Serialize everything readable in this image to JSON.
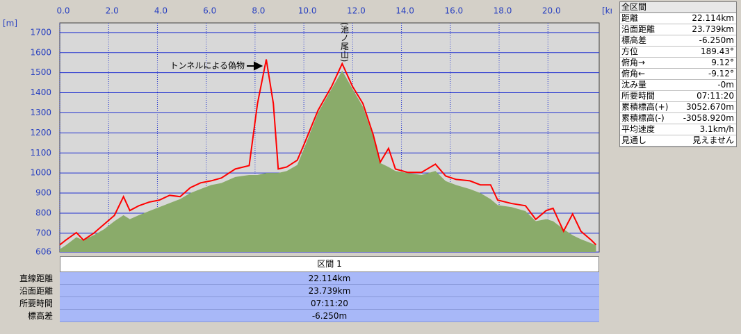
{
  "chart_data": {
    "type": "line",
    "x_unit": "[km]",
    "y_unit": "[m]",
    "x": [
      0,
      0.25,
      0.68,
      0.97,
      1.39,
      1.82,
      2.24,
      2.61,
      2.87,
      3.24,
      3.66,
      4.08,
      4.5,
      4.93,
      5.35,
      5.77,
      6.2,
      6.62,
      7.19,
      7.76,
      8.1,
      8.46,
      8.75,
      8.95,
      9.3,
      9.73,
      10.0,
      10.58,
      11.14,
      11.57,
      11.99,
      12.42,
      12.84,
      13.13,
      13.47,
      13.75,
      14.26,
      14.82,
      15.39,
      15.81,
      16.24,
      16.8,
      17.23,
      17.65,
      17.94,
      18.51,
      19.08,
      19.5,
      19.93,
      20.21,
      20.64,
      21.01,
      21.35,
      21.77,
      21.97
    ],
    "series": [
      {
        "color": "#ff0000",
        "fill": false,
        "values": [
          642,
          666,
          703,
          666,
          700,
          745,
          789,
          882,
          813,
          837,
          855,
          865,
          889,
          882,
          927,
          951,
          961,
          975,
          1020,
          1037,
          1346,
          1566,
          1346,
          1020,
          1030,
          1064,
          1140,
          1312,
          1432,
          1545,
          1432,
          1346,
          1191,
          1054,
          1123,
          1020,
          1003,
          1003,
          1044,
          985,
          968,
          961,
          941,
          941,
          865,
          848,
          837,
          769,
          813,
          824,
          710,
          796,
          710,
          666,
          642
        ]
      },
      {
        "color": "#8aab6a",
        "fill": true,
        "values": [
          620,
          640,
          680,
          665,
          690,
          720,
          760,
          790,
          770,
          790,
          810,
          830,
          850,
          870,
          900,
          920,
          940,
          950,
          980,
          990,
          990,
          1000,
          1000,
          1000,
          1010,
          1040,
          1120,
          1300,
          1420,
          1510,
          1420,
          1330,
          1180,
          1050,
          1030,
          1010,
          1000,
          990,
          1010,
          960,
          940,
          920,
          900,
          870,
          840,
          830,
          810,
          760,
          770,
          760,
          720,
          690,
          670,
          650,
          640
        ]
      }
    ],
    "xlim": [
      0,
      22.1
    ],
    "xticks": [
      {
        "value": 0,
        "label": "0.0"
      },
      {
        "value": 2,
        "label": "2.0"
      },
      {
        "value": 4,
        "label": "4.0"
      },
      {
        "value": 6,
        "label": "6.0"
      },
      {
        "value": 8,
        "label": "8.0"
      },
      {
        "value": 10,
        "label": "10.0"
      },
      {
        "value": 12,
        "label": "12.0"
      },
      {
        "value": 14,
        "label": "14.0"
      },
      {
        "value": 16,
        "label": "16.0"
      },
      {
        "value": 18,
        "label": "18.0"
      },
      {
        "value": 20,
        "label": "20.0"
      }
    ],
    "ylim": [
      606,
      1748
    ],
    "yticks": [
      606,
      700,
      800,
      900,
      1000,
      1100,
      1200,
      1300,
      1400,
      1500,
      1600,
      1700
    ],
    "grid": true,
    "annotations": [
      "トンネルによる偽物",
      "(池ノ尾山)"
    ]
  },
  "summary_panel": {
    "title": "全区間",
    "rows": [
      [
        "距離",
        "22.114km"
      ],
      [
        "沿面距離",
        "23.739km"
      ],
      [
        "標高差",
        "-6.250m"
      ],
      [
        "方位",
        "189.43°"
      ],
      [
        "俯角→",
        "9.12°"
      ],
      [
        "俯角←",
        "-9.12°"
      ],
      [
        "沈み量",
        "-0m"
      ],
      [
        "所要時間",
        "07:11:20"
      ],
      [
        "累積標高(+)",
        "3052.670m"
      ],
      [
        "累積標高(-)",
        "-3058.920m"
      ],
      [
        "平均速度",
        "3.1km/h"
      ],
      [
        "見通し",
        "見えません"
      ]
    ]
  },
  "section_table": {
    "header": "区間 1",
    "rows": [
      [
        "直線距離",
        "22.114km"
      ],
      [
        "沿面距離",
        "23.739km"
      ],
      [
        "所要時間",
        "07:11:20"
      ],
      [
        "標高差",
        "-6.250m"
      ]
    ]
  }
}
